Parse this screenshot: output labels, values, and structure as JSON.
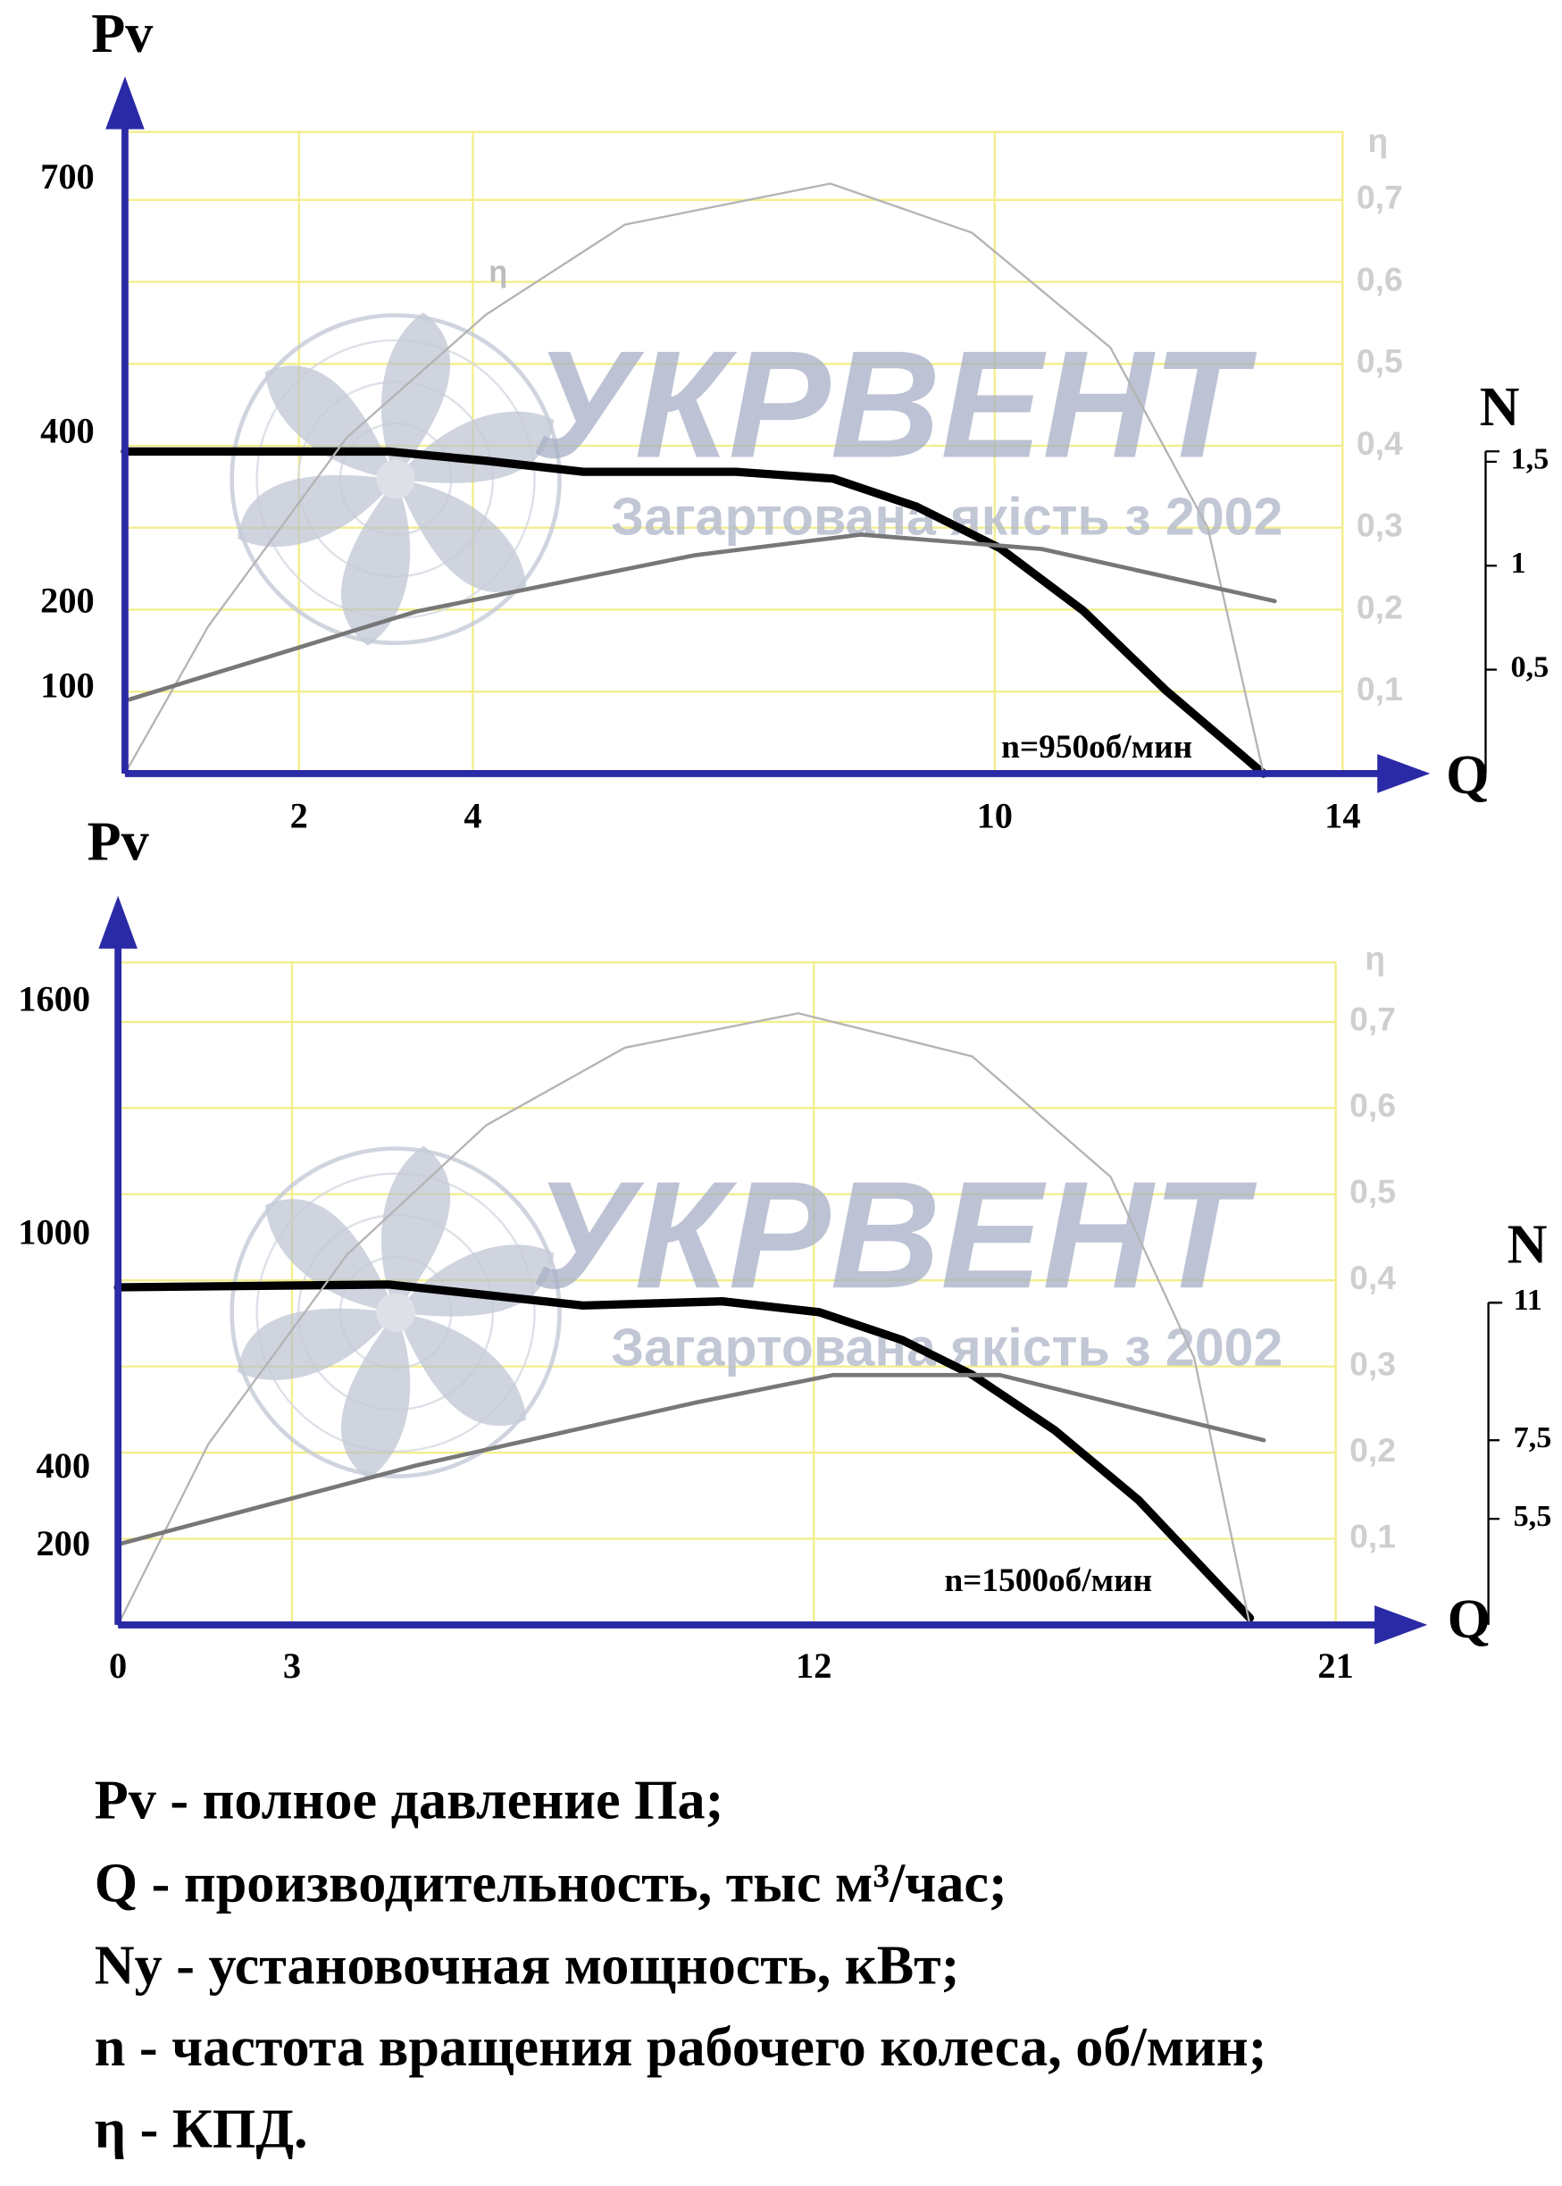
{
  "chart_data": [
    {
      "type": "line",
      "y_label": "Pv",
      "x_label": "Q",
      "y2_label": "N",
      "eta_label": "η",
      "annotation": "n=950об/мин",
      "curve_label": "η",
      "xlim": [
        0,
        14
      ],
      "xticks": [
        2,
        4,
        10,
        14
      ],
      "ylim": [
        0,
        757
      ],
      "yticks": [
        100,
        200,
        400,
        700
      ],
      "y2lim": [
        0,
        1.55
      ],
      "y2ticks": [
        {
          "value": 0.5,
          "label": "0,5"
        },
        1,
        {
          "value": 1.5,
          "label": "1,5"
        }
      ],
      "eta_lim": [
        0,
        0.783
      ],
      "eta_ticks": [
        {
          "value": 0.1,
          "label": "0,1"
        },
        {
          "value": 0.2,
          "label": "0,2"
        },
        {
          "value": 0.3,
          "label": "0,3"
        },
        {
          "value": 0.4,
          "label": "0,4"
        },
        {
          "value": 0.5,
          "label": "0,5"
        },
        {
          "value": 0.6,
          "label": "0,6"
        },
        {
          "value": 0.7,
          "label": "0,7"
        }
      ],
      "grid": true,
      "grid_color": "#f3ee8a",
      "axis_color": "#2a2aa6",
      "series": [
        {
          "color": "#000000",
          "width": 6,
          "x": [
            0,
            3.03,
            4.15,
            5.27,
            7.02,
            8.14,
            9.1,
            10.06,
            11.02,
            11.97,
            13.09
          ],
          "values": [
            380,
            380,
            369,
            356,
            356,
            348,
            315,
            266,
            192,
            98,
            0
          ]
        },
        {
          "color": "#b4b4b4",
          "width": 1.5,
          "axis": "eta",
          "x": [
            0,
            0.96,
            2.55,
            4.15,
            5.75,
            8.11,
            9.74,
            11.33,
            12.45,
            13.09
          ],
          "values": [
            0,
            0.18,
            0.41,
            0.56,
            0.67,
            0.72,
            0.66,
            0.52,
            0.3,
            0
          ]
        },
        {
          "color": "#777777",
          "width": 3,
          "axis": "y2",
          "x": [
            0,
            3.35,
            6.55,
            8.46,
            10.54,
            13.22
          ],
          "values": [
            0.35,
            0.78,
            1.05,
            1.15,
            1.08,
            0.83
          ]
        }
      ]
    },
    {
      "type": "line",
      "y_label": "Pv",
      "x_label": "Q",
      "y2_label": "N",
      "eta_label": "η",
      "annotation": "n=1500об/мин",
      "xlim": [
        0,
        21
      ],
      "xticks": [
        0,
        3,
        12,
        21
      ],
      "ylim": [
        0,
        1703
      ],
      "yticks": [
        200,
        400,
        1000,
        1600
      ],
      "y2lim": [
        2.8,
        11
      ],
      "y2ticks": [
        {
          "value": 5.5,
          "label": "5,5"
        },
        {
          "value": 7.5,
          "label": "7,5"
        },
        11
      ],
      "eta_lim": [
        0,
        0.769
      ],
      "eta_ticks": [
        {
          "value": 0.1,
          "label": "0,1"
        },
        {
          "value": 0.2,
          "label": "0,2"
        },
        {
          "value": 0.3,
          "label": "0,3"
        },
        {
          "value": 0.4,
          "label": "0,4"
        },
        {
          "value": 0.5,
          "label": "0,5"
        },
        {
          "value": 0.6,
          "label": "0,6"
        },
        {
          "value": 0.7,
          "label": "0,7"
        }
      ],
      "grid": true,
      "grid_color": "#f3ee8a",
      "axis_color": "#2a2aa6",
      "series": [
        {
          "color": "#000000",
          "width": 6,
          "x": [
            0,
            4.67,
            8.02,
            10.42,
            12.09,
            13.53,
            14.73,
            16.16,
            17.6,
            19.52
          ],
          "values": [
            868,
            875,
            821,
            832,
            804,
            732,
            643,
            500,
            321,
            18
          ]
        },
        {
          "color": "#b4b4b4",
          "width": 1.5,
          "axis": "eta",
          "x": [
            0,
            1.56,
            3.95,
            6.35,
            8.74,
            11.73,
            14.73,
            17.12,
            18.56,
            19.52
          ],
          "values": [
            0,
            0.21,
            0.43,
            0.58,
            0.67,
            0.71,
            0.66,
            0.52,
            0.31,
            0
          ]
        },
        {
          "color": "#777777",
          "width": 3,
          "axis": "y2",
          "x": [
            0,
            5.15,
            9.94,
            12.33,
            15.21,
            19.76
          ],
          "values": [
            4.85,
            6.86,
            8.45,
            9.16,
            9.16,
            7.5
          ]
        }
      ]
    }
  ],
  "watermark": {
    "brand": "УКРВЕНТ",
    "slogan": "Загартована якість з 2002"
  },
  "legend": [
    "Pv - полное давление Па;",
    "Q - производительность, тыс м³/час;",
    "Ny - установочная мощность, кВт;",
    "n - частота вращения рабочего колеса, об/мин;",
    "η - КПД."
  ]
}
